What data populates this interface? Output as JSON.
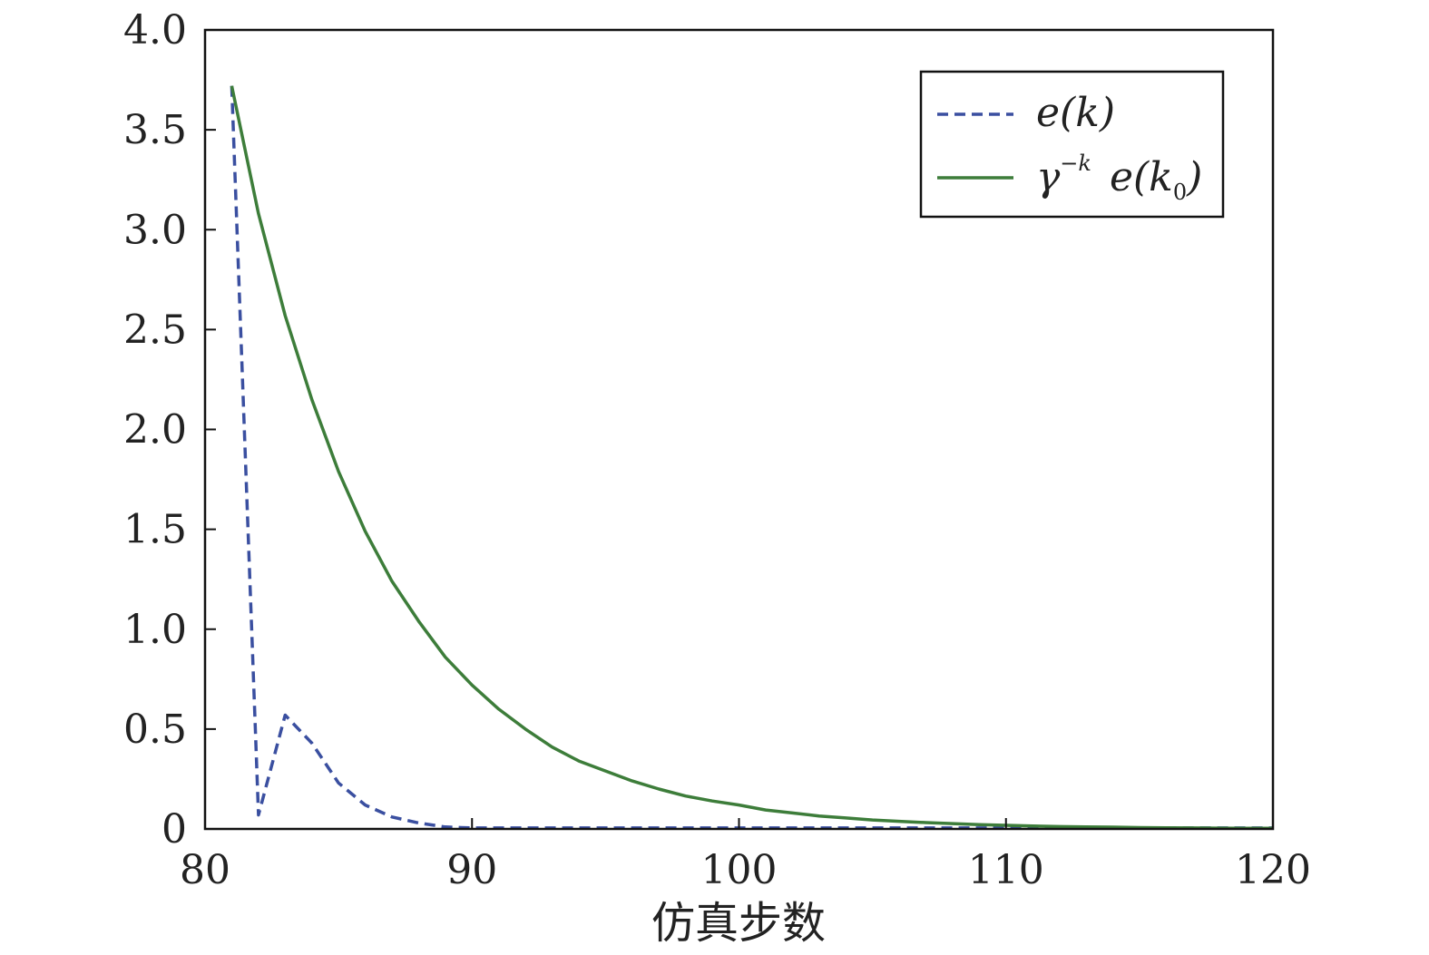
{
  "chart_data": {
    "type": "line",
    "xlabel": "仿真步数",
    "ylabel": "",
    "xlim": [
      80,
      120
    ],
    "ylim": [
      0,
      4.0
    ],
    "xticks": [
      80,
      90,
      100,
      110,
      120
    ],
    "xtick_labels": [
      "80",
      "90",
      "100",
      "110",
      "120"
    ],
    "yticks": [
      0,
      0.5,
      1.0,
      1.5,
      2.0,
      2.5,
      3.0,
      3.5,
      4.0
    ],
    "ytick_labels": [
      "0",
      "0.5",
      "1.0",
      "1.5",
      "2.0",
      "2.5",
      "3.0",
      "3.5",
      "4.0"
    ],
    "grid": false,
    "legend_position": "top-right",
    "legend": {
      "entry1": {
        "main": "e(k)"
      },
      "entry2": {
        "gamma": "γ",
        "sup": "−k",
        "rest": "e(k",
        "sub": "0",
        "close": ")"
      }
    },
    "series": [
      {
        "color": "#3a4fa0",
        "line_style": "dashed",
        "x": [
          81,
          82,
          83,
          84,
          85,
          86,
          87,
          88,
          89,
          90,
          91,
          92,
          93,
          94,
          95,
          96,
          97,
          98,
          99,
          100,
          101,
          102,
          103,
          104,
          105,
          106,
          107,
          108,
          109,
          110,
          111,
          112,
          113,
          114,
          115,
          116,
          117,
          118,
          119,
          120
        ],
        "y": [
          3.72,
          0.07,
          0.57,
          0.43,
          0.23,
          0.12,
          0.06,
          0.03,
          0.01,
          0.005,
          0.005,
          0.005,
          0.005,
          0.005,
          0.005,
          0.005,
          0.005,
          0.005,
          0.005,
          0.005,
          0.005,
          0.005,
          0.005,
          0.005,
          0.005,
          0.005,
          0.005,
          0.005,
          0.005,
          0.005,
          0.005,
          0.005,
          0.005,
          0.005,
          0.005,
          0.005,
          0.005,
          0.005,
          0.005,
          0.005
        ]
      },
      {
        "color": "#3d7d3a",
        "line_style": "solid",
        "x": [
          81,
          82,
          83,
          84,
          85,
          86,
          87,
          88,
          89,
          90,
          91,
          92,
          93,
          94,
          95,
          96,
          97,
          98,
          99,
          100,
          101,
          102,
          103,
          104,
          105,
          106,
          107,
          108,
          109,
          110,
          111,
          112,
          113,
          114,
          115,
          116,
          117,
          118,
          119,
          120
        ],
        "y": [
          3.72,
          3.08,
          2.57,
          2.15,
          1.79,
          1.49,
          1.24,
          1.04,
          0.86,
          0.72,
          0.6,
          0.5,
          0.41,
          0.34,
          0.29,
          0.24,
          0.2,
          0.165,
          0.14,
          0.12,
          0.095,
          0.08,
          0.065,
          0.055,
          0.045,
          0.038,
          0.032,
          0.027,
          0.022,
          0.018,
          0.015,
          0.012,
          0.01,
          0.009,
          0.007,
          0.006,
          0.005,
          0.004,
          0.003,
          0.003
        ]
      }
    ]
  }
}
